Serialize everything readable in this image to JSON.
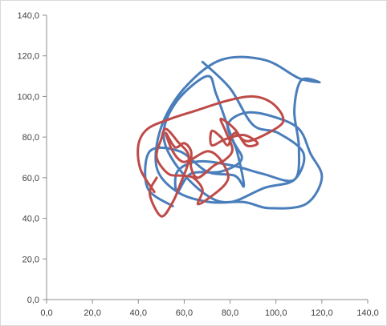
{
  "chart_data": {
    "type": "scatter",
    "title": "",
    "xlabel": "",
    "ylabel": "",
    "xlim": [
      0,
      140
    ],
    "ylim": [
      0,
      140
    ],
    "x_ticks": [
      0,
      20,
      40,
      60,
      80,
      100,
      120,
      140
    ],
    "y_ticks": [
      0,
      20,
      40,
      60,
      80,
      100,
      120,
      140
    ],
    "x_tick_labels": [
      "0,0",
      "20,0",
      "40,0",
      "60,0",
      "80,0",
      "100,0",
      "120,0",
      "140,0"
    ],
    "y_tick_labels": [
      "0,0",
      "20,0",
      "40,0",
      "60,0",
      "80,0",
      "100,0",
      "120,0",
      "140,0"
    ],
    "grid": false,
    "legend": "none",
    "series": [
      {
        "color": "#4a7ebb",
        "line_width": 3,
        "smooth": true,
        "points": [
          [
            55,
            46
          ],
          [
            44,
            55
          ],
          [
            45,
            73
          ],
          [
            58,
            73
          ],
          [
            70,
            63
          ],
          [
            82,
            61
          ],
          [
            86,
            56
          ],
          [
            83,
            73
          ],
          [
            79,
            86
          ],
          [
            87,
            92
          ],
          [
            99,
            90
          ],
          [
            110,
            84
          ],
          [
            115,
            72
          ],
          [
            120,
            60
          ],
          [
            113,
            47
          ],
          [
            97,
            45
          ],
          [
            86,
            48
          ],
          [
            71,
            48
          ],
          [
            57,
            53
          ],
          [
            48,
            65
          ],
          [
            50,
            85
          ],
          [
            60,
            104
          ],
          [
            76,
            118
          ],
          [
            95,
            118
          ],
          [
            110,
            109
          ],
          [
            119,
            107
          ],
          [
            111,
            108
          ],
          [
            108,
            93
          ],
          [
            110,
            75
          ],
          [
            108,
            59
          ],
          [
            94,
            62
          ],
          [
            81,
            66
          ],
          [
            66,
            68
          ],
          [
            57,
            63
          ],
          [
            57,
            53
          ],
          [
            63,
            62
          ],
          [
            76,
            63
          ],
          [
            85,
            69
          ],
          [
            81,
            79
          ],
          [
            74,
            101
          ],
          [
            70,
            110
          ],
          [
            57,
            98
          ],
          [
            51,
            82
          ],
          [
            56,
            67
          ],
          [
            69,
            52
          ],
          [
            80,
            48
          ],
          [
            95,
            55
          ],
          [
            108,
            59
          ],
          [
            112,
            72
          ],
          [
            101,
            82
          ],
          [
            90,
            86
          ],
          [
            80,
            104
          ],
          [
            68,
            117
          ]
        ]
      },
      {
        "color": "#be4b48",
        "line_width": 3,
        "smooth": true,
        "points": [
          [
            47,
            53
          ],
          [
            41,
            64
          ],
          [
            40,
            76
          ],
          [
            44,
            84
          ],
          [
            54,
            89
          ],
          [
            65,
            93
          ],
          [
            79,
            98
          ],
          [
            90,
            100
          ],
          [
            98,
            97
          ],
          [
            103,
            90
          ],
          [
            101,
            85
          ],
          [
            88,
            78
          ],
          [
            82,
            82
          ],
          [
            79,
            76
          ],
          [
            76,
            80
          ],
          [
            72,
            83
          ],
          [
            72,
            76
          ],
          [
            78,
            79
          ],
          [
            86,
            81
          ],
          [
            92,
            77
          ],
          [
            87,
            76
          ],
          [
            82,
            84
          ],
          [
            76,
            89
          ],
          [
            78,
            83
          ],
          [
            81,
            74
          ],
          [
            78,
            69
          ],
          [
            73,
            66
          ],
          [
            66,
            60
          ],
          [
            63,
            65
          ],
          [
            63,
            73
          ],
          [
            60,
            77
          ],
          [
            56,
            75
          ],
          [
            52,
            82
          ],
          [
            55,
            73
          ],
          [
            59,
            68
          ],
          [
            63,
            69
          ],
          [
            70,
            73
          ],
          [
            75,
            70
          ],
          [
            79,
            62
          ],
          [
            78,
            57
          ],
          [
            72,
            51
          ],
          [
            66,
            47
          ],
          [
            68,
            54
          ],
          [
            64,
            60
          ],
          [
            59,
            61
          ],
          [
            53,
            62
          ],
          [
            48,
            70
          ],
          [
            50,
            79
          ],
          [
            52,
            84
          ],
          [
            57,
            78
          ],
          [
            62,
            70
          ],
          [
            58,
            56
          ],
          [
            55,
            48
          ],
          [
            50,
            41
          ],
          [
            45,
            52
          ],
          [
            48,
            60
          ]
        ]
      }
    ]
  }
}
